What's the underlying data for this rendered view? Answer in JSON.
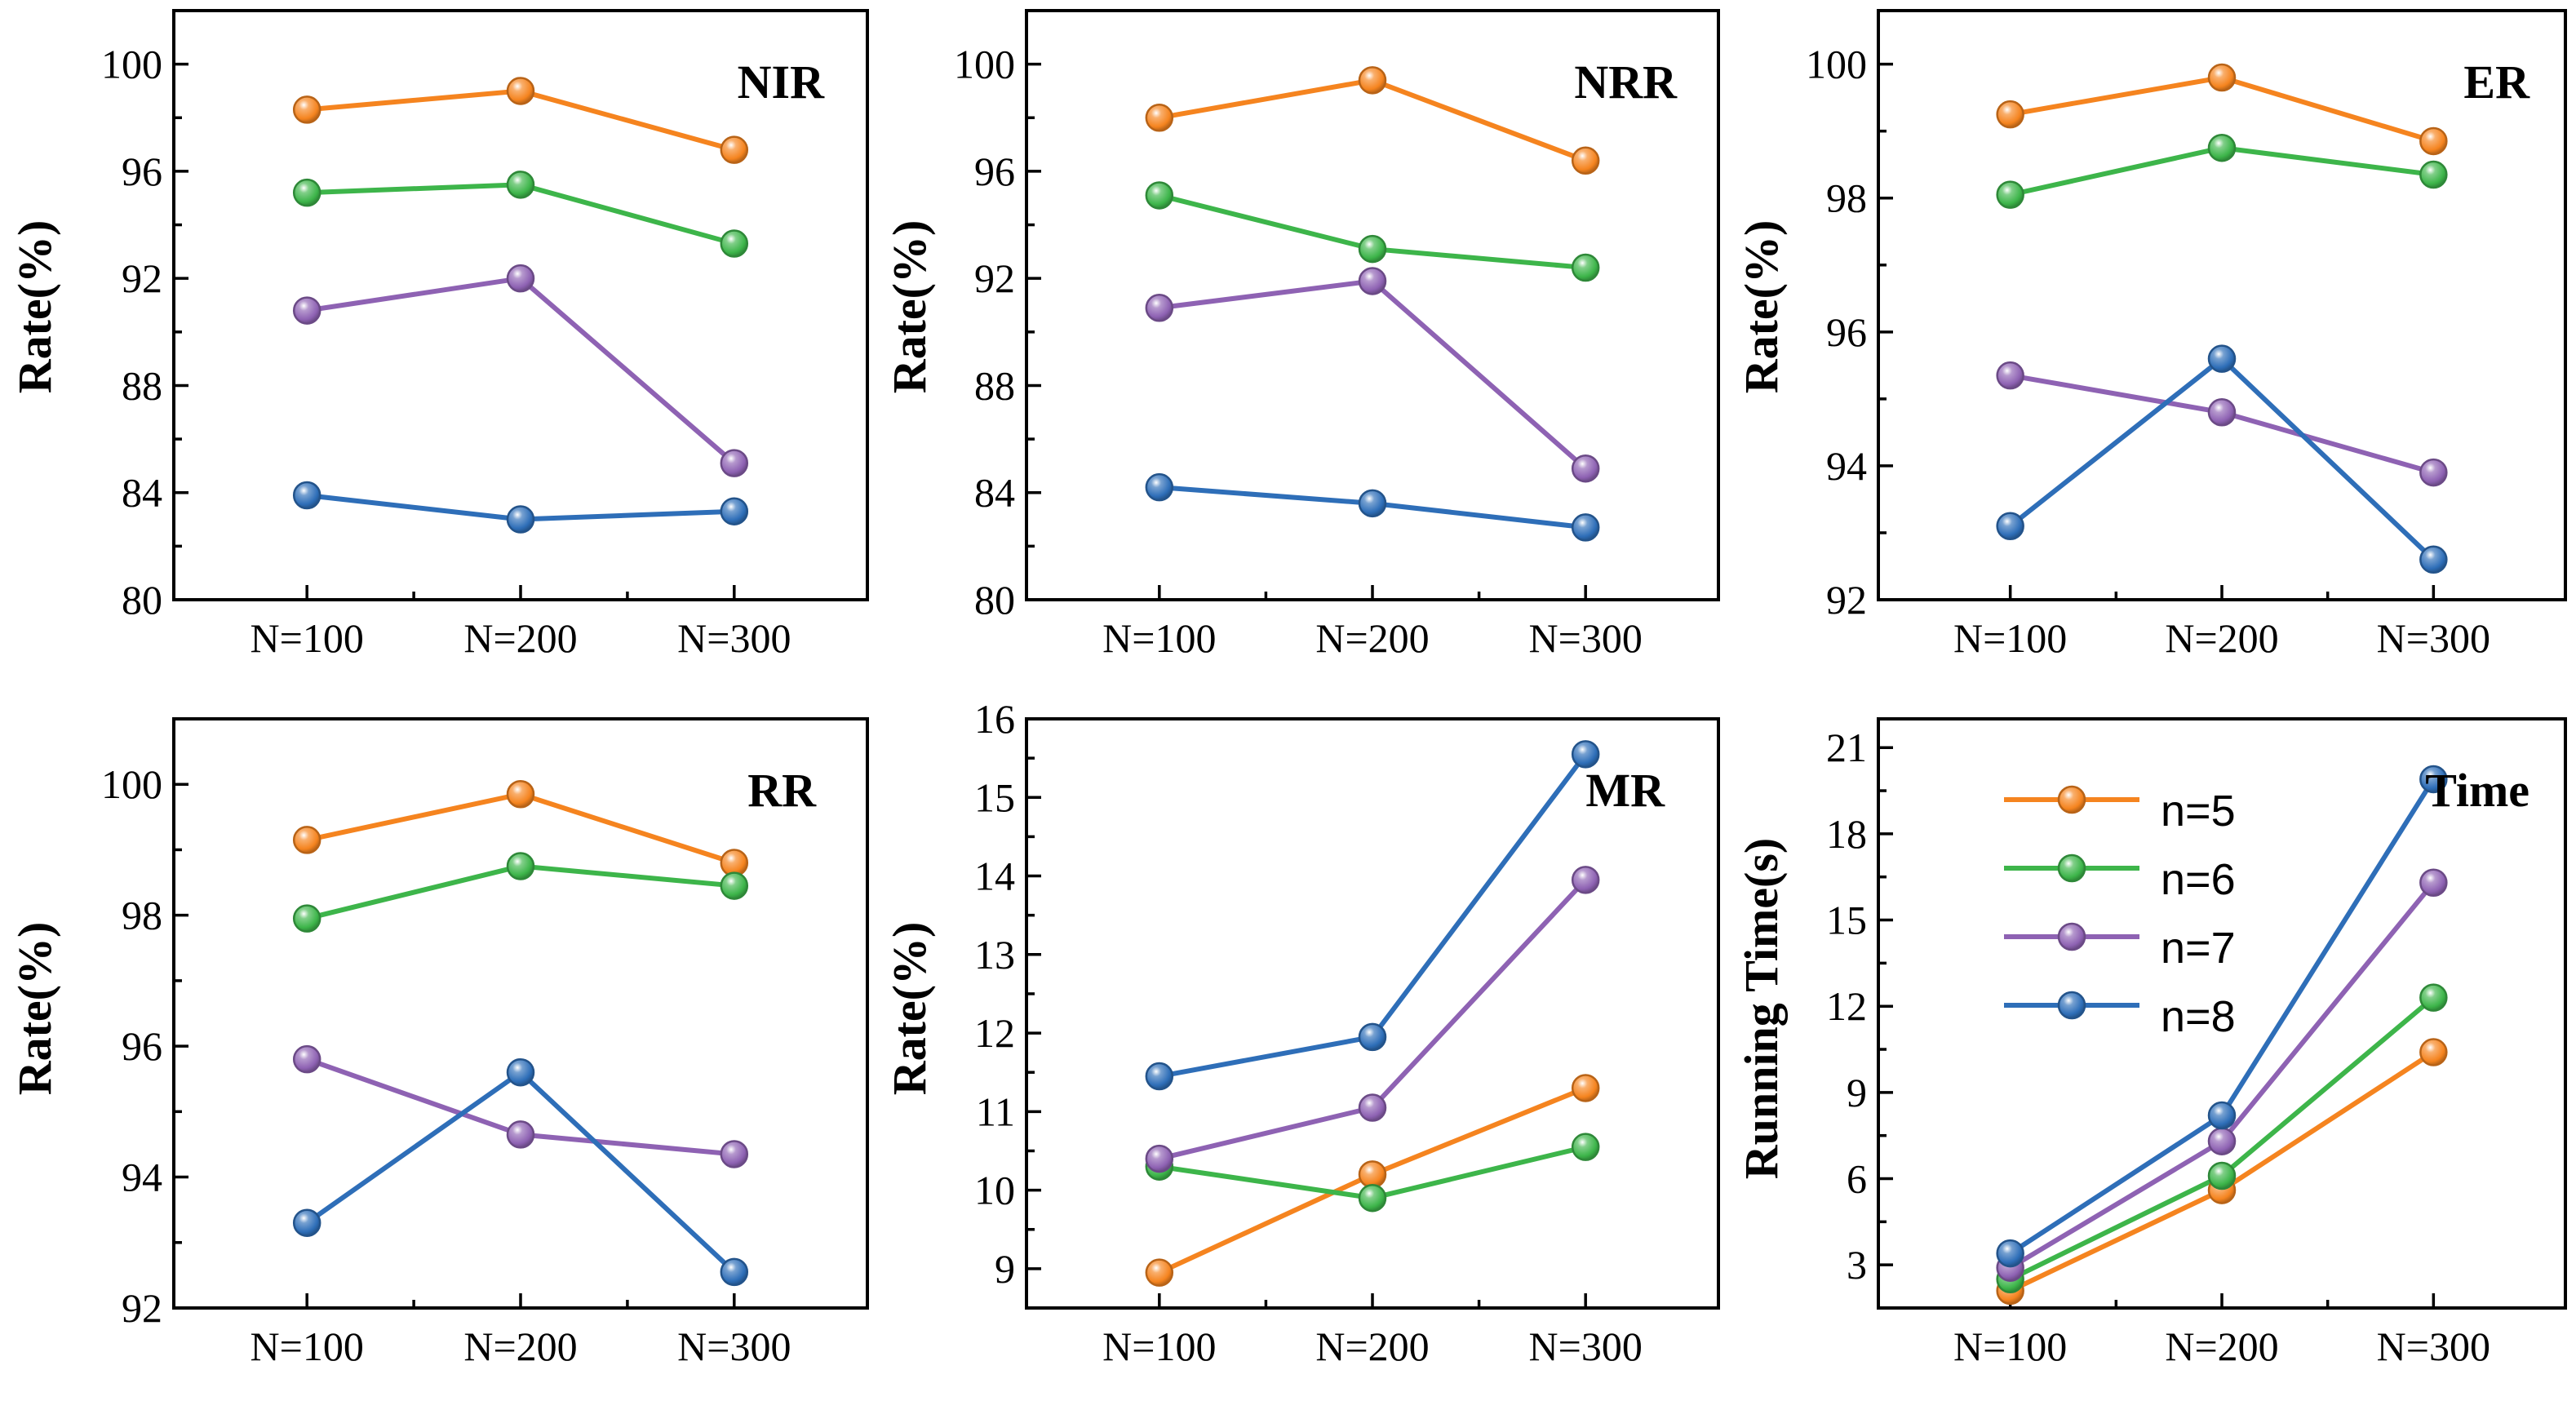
{
  "chart_data": [
    {
      "id": "nir",
      "type": "line",
      "title": "NIR",
      "ylabel": "Rate(%)",
      "xlabel": "",
      "categories": [
        "N=100",
        "N=200",
        "N=300"
      ],
      "ylim": [
        80,
        102
      ],
      "yticks": [
        80,
        84,
        88,
        92,
        96,
        100
      ],
      "yminor": 2,
      "series": [
        {
          "name": "n=5",
          "color": "#F5841F",
          "values": [
            98.3,
            99.0,
            96.8
          ]
        },
        {
          "name": "n=6",
          "color": "#3DB54A",
          "values": [
            95.2,
            95.5,
            93.3
          ]
        },
        {
          "name": "n=7",
          "color": "#8E62B3",
          "values": [
            90.8,
            92.0,
            85.1
          ]
        },
        {
          "name": "n=8",
          "color": "#2E6EB8",
          "values": [
            83.9,
            83.0,
            83.3
          ]
        }
      ]
    },
    {
      "id": "nrr",
      "type": "line",
      "title": "NRR",
      "ylabel": "Rate(%)",
      "xlabel": "",
      "categories": [
        "N=100",
        "N=200",
        "N=300"
      ],
      "ylim": [
        80,
        102
      ],
      "yticks": [
        80,
        84,
        88,
        92,
        96,
        100
      ],
      "yminor": 2,
      "series": [
        {
          "name": "n=5",
          "color": "#F5841F",
          "values": [
            98.0,
            99.4,
            96.4
          ]
        },
        {
          "name": "n=6",
          "color": "#3DB54A",
          "values": [
            95.1,
            93.1,
            92.4
          ]
        },
        {
          "name": "n=7",
          "color": "#8E62B3",
          "values": [
            90.9,
            91.9,
            84.9
          ]
        },
        {
          "name": "n=8",
          "color": "#2E6EB8",
          "values": [
            84.2,
            83.6,
            82.7
          ]
        }
      ]
    },
    {
      "id": "er",
      "type": "line",
      "title": "ER",
      "ylabel": "Rate(%)",
      "xlabel": "",
      "categories": [
        "N=100",
        "N=200",
        "N=300"
      ],
      "ylim": [
        92,
        100.8
      ],
      "yticks": [
        92,
        94,
        96,
        98,
        100
      ],
      "yminor": 1,
      "series": [
        {
          "name": "n=5",
          "color": "#F5841F",
          "values": [
            99.25,
            99.8,
            98.85
          ]
        },
        {
          "name": "n=6",
          "color": "#3DB54A",
          "values": [
            98.05,
            98.75,
            98.35
          ]
        },
        {
          "name": "n=7",
          "color": "#8E62B3",
          "values": [
            95.35,
            94.8,
            93.9
          ]
        },
        {
          "name": "n=8",
          "color": "#2E6EB8",
          "values": [
            93.1,
            95.6,
            92.6
          ]
        }
      ]
    },
    {
      "id": "rr",
      "type": "line",
      "title": "RR",
      "ylabel": "Rate(%)",
      "xlabel": "",
      "categories": [
        "N=100",
        "N=200",
        "N=300"
      ],
      "ylim": [
        92,
        101
      ],
      "yticks": [
        92,
        94,
        96,
        98,
        100
      ],
      "yminor": 1,
      "series": [
        {
          "name": "n=5",
          "color": "#F5841F",
          "values": [
            99.15,
            99.85,
            98.8
          ]
        },
        {
          "name": "n=6",
          "color": "#3DB54A",
          "values": [
            97.95,
            98.75,
            98.45
          ]
        },
        {
          "name": "n=7",
          "color": "#8E62B3",
          "values": [
            95.8,
            94.65,
            94.35
          ]
        },
        {
          "name": "n=8",
          "color": "#2E6EB8",
          "values": [
            93.3,
            95.6,
            92.55
          ]
        }
      ]
    },
    {
      "id": "mr",
      "type": "line",
      "title": "MR",
      "ylabel": "Rate(%)",
      "xlabel": "",
      "categories": [
        "N=100",
        "N=200",
        "N=300"
      ],
      "ylim": [
        8.5,
        16
      ],
      "yticks": [
        9,
        10,
        11,
        12,
        13,
        14,
        15,
        16
      ],
      "yminor": 0.5,
      "series": [
        {
          "name": "n=5",
          "color": "#F5841F",
          "values": [
            8.95,
            10.2,
            11.3
          ]
        },
        {
          "name": "n=6",
          "color": "#3DB54A",
          "values": [
            10.3,
            9.9,
            10.55
          ]
        },
        {
          "name": "n=7",
          "color": "#8E62B3",
          "values": [
            10.4,
            11.05,
            13.95
          ]
        },
        {
          "name": "n=8",
          "color": "#2E6EB8",
          "values": [
            11.45,
            11.95,
            15.55
          ]
        }
      ]
    },
    {
      "id": "time",
      "type": "line",
      "title": "Time",
      "ylabel": "Running Time(s)",
      "xlabel": "",
      "categories": [
        "N=100",
        "N=200",
        "N=300"
      ],
      "ylim": [
        1.5,
        22
      ],
      "yticks": [
        3,
        6,
        9,
        12,
        15,
        18,
        21
      ],
      "yminor": 1.5,
      "legend": "top-left",
      "series": [
        {
          "name": "n=5",
          "color": "#F5841F",
          "values": [
            2.1,
            5.6,
            10.4
          ]
        },
        {
          "name": "n=6",
          "color": "#3DB54A",
          "values": [
            2.5,
            6.1,
            12.3
          ]
        },
        {
          "name": "n=7",
          "color": "#8E62B3",
          "values": [
            2.9,
            7.3,
            16.3
          ]
        },
        {
          "name": "n=8",
          "color": "#2E6EB8",
          "values": [
            3.4,
            8.2,
            19.9
          ]
        }
      ]
    }
  ]
}
